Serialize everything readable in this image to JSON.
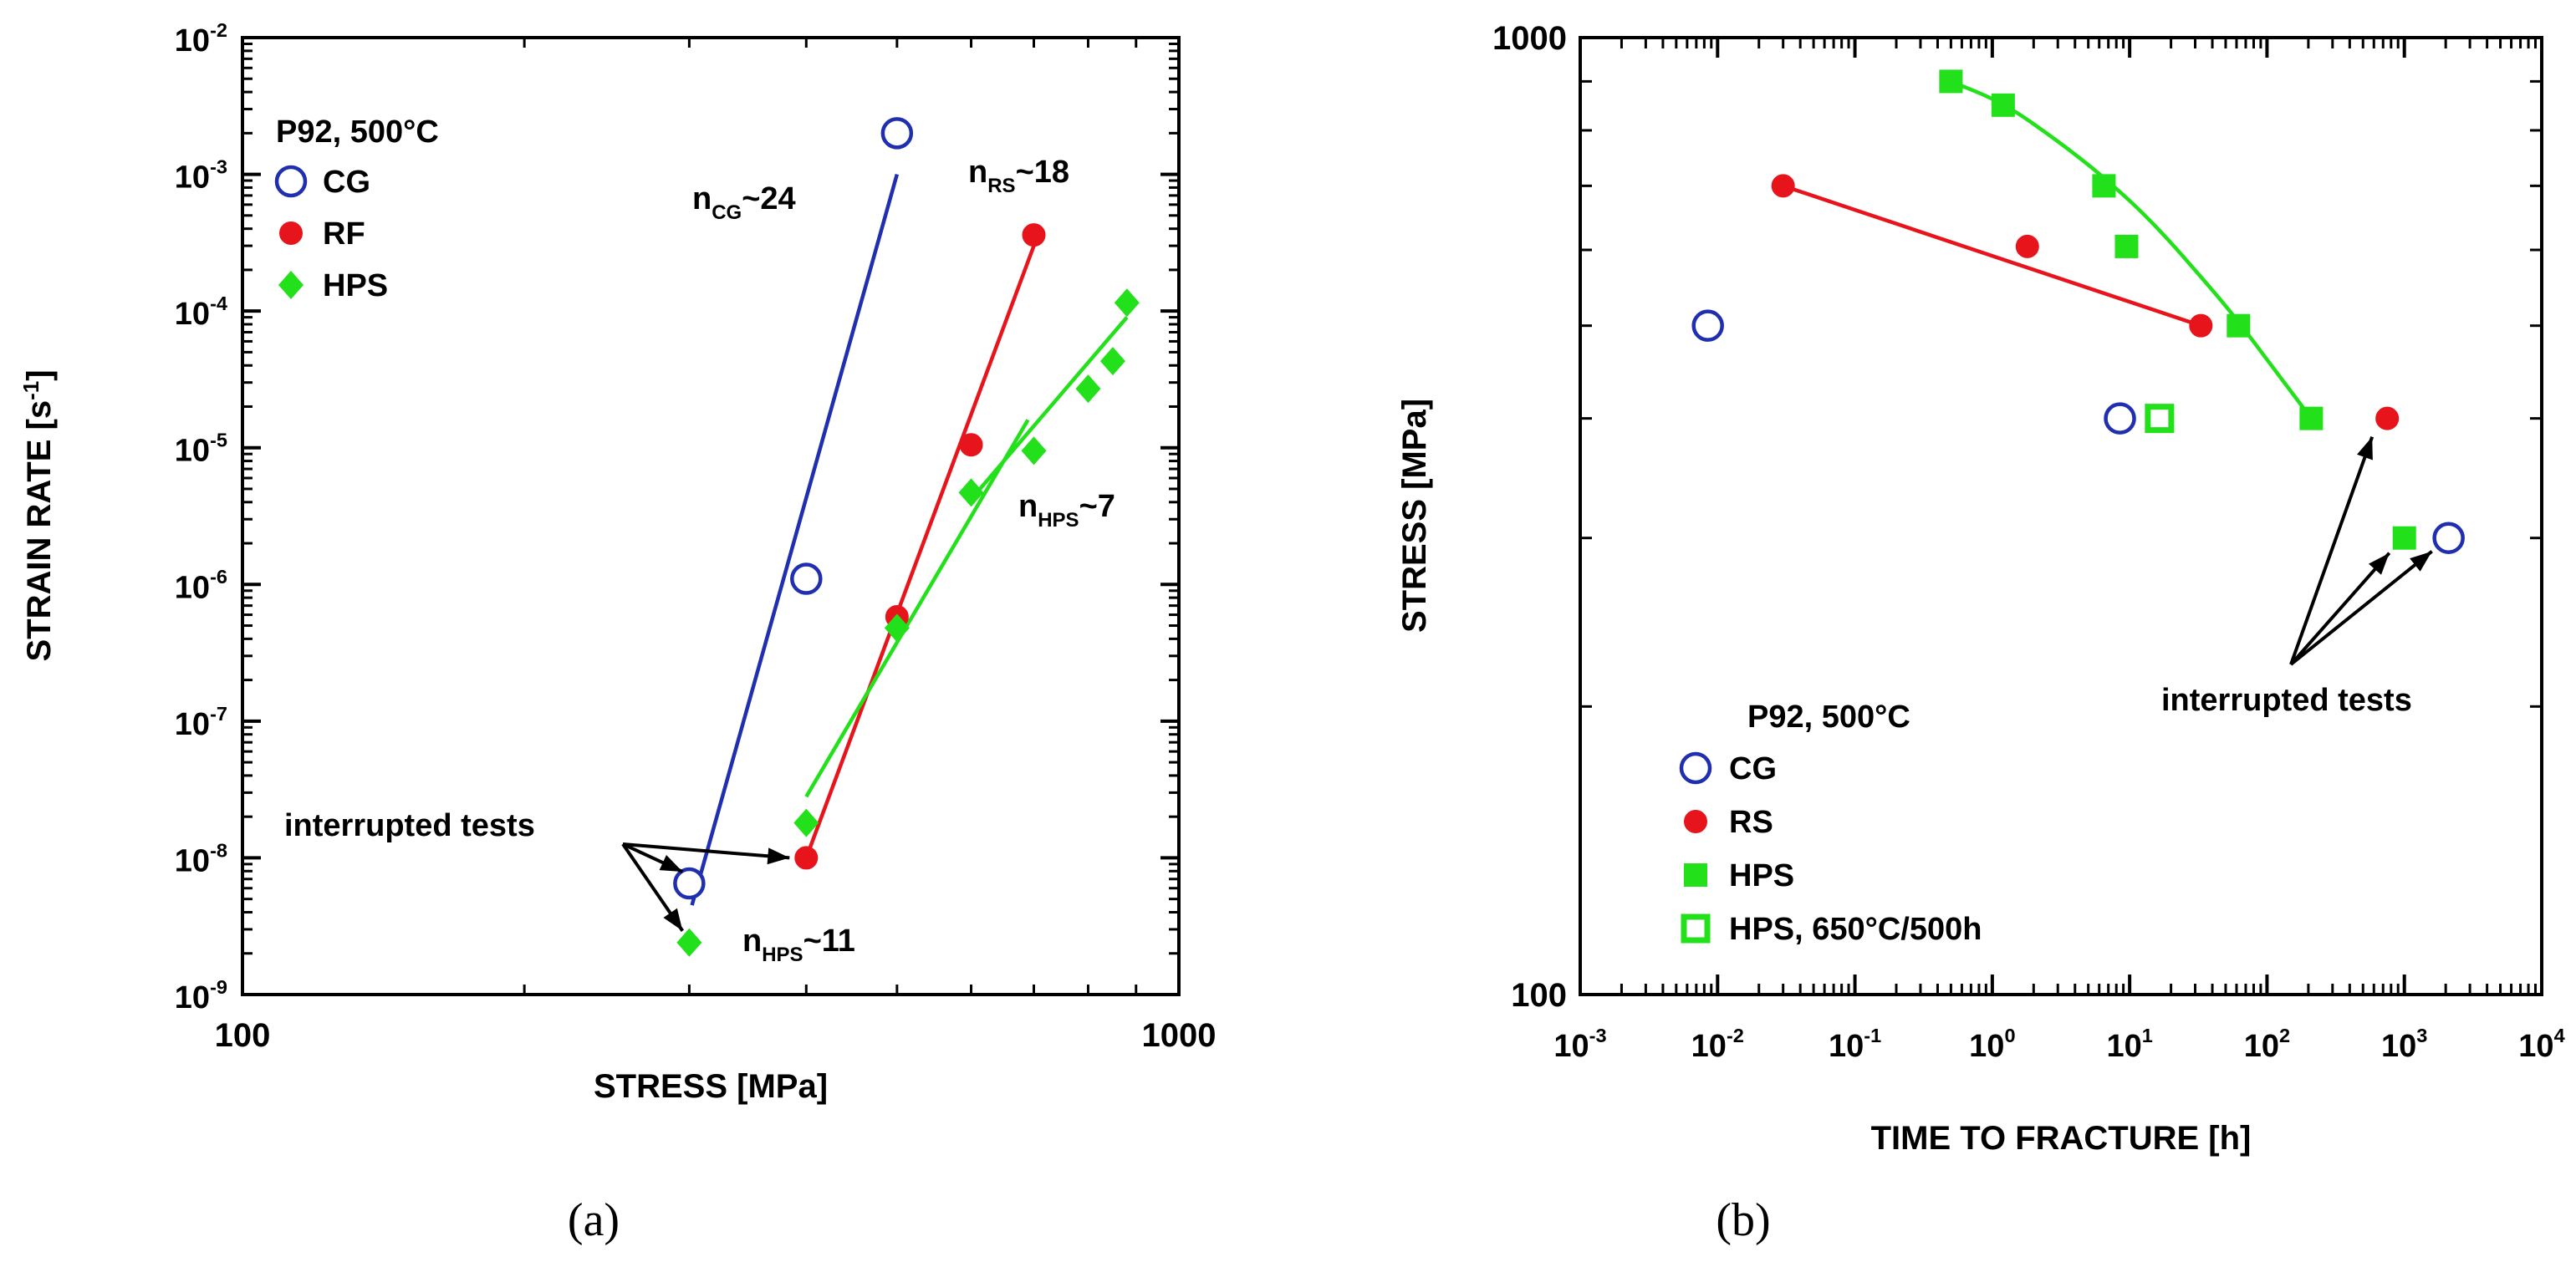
{
  "chart_data": [
    {
      "type": "scatter",
      "panel_label": "(a)",
      "title": "",
      "xlabel": "STRESS [MPa]",
      "ylabel_base": "STRAIN RATE [s",
      "ylabel_sup": "-1",
      "ylabel_close": "]",
      "xscale": "log",
      "yscale": "log",
      "xlim": [
        100,
        1000
      ],
      "ylim": [
        1e-09,
        0.01
      ],
      "x_ticks": [
        {
          "value": 100,
          "label": "100"
        },
        {
          "value": 1000,
          "label": "1000"
        }
      ],
      "y_ticks": [
        {
          "value": 1e-09,
          "base": "10",
          "exp": "-9"
        },
        {
          "value": 1e-08,
          "base": "10",
          "exp": "-8"
        },
        {
          "value": 1e-07,
          "base": "10",
          "exp": "-7"
        },
        {
          "value": 1e-06,
          "base": "10",
          "exp": "-6"
        },
        {
          "value": 1e-05,
          "base": "10",
          "exp": "-5"
        },
        {
          "value": 0.0001,
          "base": "10",
          "exp": "-4"
        },
        {
          "value": 0.001,
          "base": "10",
          "exp": "-3"
        },
        {
          "value": 0.01,
          "base": "10",
          "exp": "-2"
        }
      ],
      "legend_title": "P92, 500°C",
      "legend_placement": "top-left",
      "series": [
        {
          "name": "CG",
          "marker": "open-circle",
          "color": "#1f2fb0",
          "points": [
            [
              300,
              6.5e-09
            ],
            [
              400,
              1.1e-06
            ],
            [
              500,
              0.002
            ]
          ],
          "fit": [
            [
              302,
              4.5e-09
            ],
            [
              500,
              0.001
            ]
          ]
        },
        {
          "name": "RF",
          "marker": "filled-circle",
          "color": "#e8141c",
          "points": [
            [
              400,
              1e-08
            ],
            [
              500,
              5.8e-07
            ],
            [
              600,
              1.05e-05
            ],
            [
              700,
              0.00036
            ]
          ],
          "fit": [
            [
              400,
              1e-08
            ],
            [
              700,
              0.0003
            ]
          ]
        },
        {
          "name": "HPS",
          "marker": "filled-diamond",
          "color": "#22e01a",
          "points": [
            [
              300,
              2.4e-09
            ],
            [
              400,
              1.8e-08
            ],
            [
              500,
              4.8e-07
            ],
            [
              600,
              4.7e-06
            ],
            [
              700,
              9.5e-06
            ],
            [
              800,
              2.7e-05
            ],
            [
              850,
              4.3e-05
            ],
            [
              880,
              0.000115
            ]
          ],
          "fits": [
            [
              [
                400,
                2.8e-08
              ],
              [
                690,
                1.6e-05
              ]
            ],
            [
              [
                600,
                4.2e-06
              ],
              [
                880,
                9e-05
              ]
            ]
          ]
        }
      ],
      "annotations": [
        {
          "name": "ncg",
          "base": "n",
          "sub": "CG",
          "rest": "~24"
        },
        {
          "name": "nrs",
          "base": "n",
          "sub": "RS",
          "rest": "~18"
        },
        {
          "name": "nhps7",
          "base": "n",
          "sub": "HPS",
          "rest": "~7"
        },
        {
          "name": "nhps11",
          "base": "n",
          "sub": "HPS",
          "rest": "~11"
        },
        {
          "name": "interrupted",
          "text": "interrupted tests"
        }
      ]
    },
    {
      "type": "scatter",
      "panel_label": "(b)",
      "title": "",
      "xlabel": "TIME TO FRACTURE [h]",
      "ylabel": "STRESS [MPa]",
      "xscale": "log",
      "yscale": "log",
      "xlim": [
        0.001,
        10000.0
      ],
      "ylim": [
        100,
        1000
      ],
      "x_ticks": [
        {
          "value": 0.001,
          "base": "10",
          "exp": "-3"
        },
        {
          "value": 0.01,
          "base": "10",
          "exp": "-2"
        },
        {
          "value": 0.1,
          "base": "10",
          "exp": "-1"
        },
        {
          "value": 1.0,
          "base": "10",
          "exp": "0"
        },
        {
          "value": 10.0,
          "base": "10",
          "exp": "1"
        },
        {
          "value": 100.0,
          "base": "10",
          "exp": "2"
        },
        {
          "value": 1000.0,
          "base": "10",
          "exp": "3"
        },
        {
          "value": 10000.0,
          "base": "10",
          "exp": "4"
        }
      ],
      "y_ticks": [
        {
          "value": 100,
          "label": "100"
        },
        {
          "value": 1000,
          "label": "1000"
        }
      ],
      "legend_title": "P92, 500°C",
      "legend_placement": "bottom-left",
      "series": [
        {
          "name": "CG",
          "marker": "open-circle",
          "color": "#1f2fb0",
          "points": [
            [
              0.0085,
              500
            ],
            [
              8.5,
              400
            ],
            [
              2100,
              300
            ]
          ]
        },
        {
          "name": "RS",
          "marker": "filled-circle",
          "color": "#e8141c",
          "points": [
            [
              0.03,
              700
            ],
            [
              1.8,
              605
            ],
            [
              33,
              500
            ],
            [
              750,
              400
            ]
          ],
          "fit": [
            [
              0.03,
              700
            ],
            [
              33,
              500
            ]
          ]
        },
        {
          "name": "HPS",
          "marker": "filled-square",
          "color": "#22e01a",
          "points": [
            [
              0.5,
              900
            ],
            [
              1.2,
              850
            ],
            [
              6.5,
              700
            ],
            [
              9.5,
              605
            ],
            [
              62,
              500
            ],
            [
              210,
              400
            ],
            [
              1000,
              300
            ]
          ],
          "fit_curve": [
            [
              0.5,
              900
            ],
            [
              1.2,
              855
            ],
            [
              3,
              780
            ],
            [
              6.5,
              715
            ],
            [
              15,
              640
            ],
            [
              40,
              545
            ],
            [
              62,
              505
            ],
            [
              120,
              445
            ],
            [
              210,
              400
            ]
          ]
        },
        {
          "name": "HPS, 650°C/500h",
          "marker": "open-square",
          "color": "#22e01a",
          "points": [
            [
              16.5,
              400
            ]
          ]
        }
      ],
      "annotations": [
        {
          "name": "interrupted",
          "text": "interrupted tests"
        }
      ]
    }
  ]
}
